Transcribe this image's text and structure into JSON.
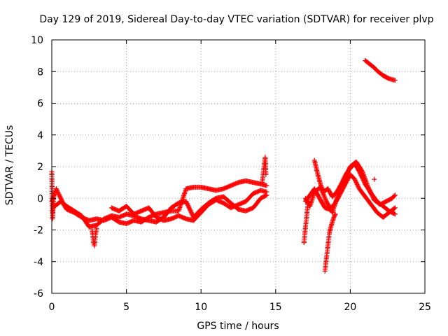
{
  "chart_data": {
    "type": "scatter",
    "title": "Day 129 of 2019, Sidereal Day-to-day VTEC variation (SDTVAR) for receiver plvp",
    "xlabel": "GPS time / hours",
    "ylabel": "SDTVAR / TECUs",
    "xlim": [
      0,
      25
    ],
    "ylim": [
      -6,
      10
    ],
    "xticks": [
      0,
      5,
      10,
      15,
      20,
      25
    ],
    "yticks": [
      -6,
      -4,
      -2,
      0,
      2,
      4,
      6,
      8,
      10
    ],
    "grid": true,
    "marker": "plus",
    "color": "#ff0000",
    "segments": [
      {
        "name": "main-track-a",
        "x": [
          0.0,
          0.3,
          0.5,
          0.8,
          1.0,
          1.5,
          2.0,
          2.5,
          3.0,
          3.5,
          4.0,
          4.5,
          5.0,
          5.5,
          6.0,
          6.5,
          7.0,
          7.5,
          8.0,
          8.5,
          9.0,
          9.5,
          10.0,
          10.5,
          11.0,
          11.5,
          12.0,
          12.5,
          13.0,
          13.5,
          14.0,
          14.4
        ],
        "y": [
          -0.2,
          0.6,
          0.2,
          -0.4,
          -0.7,
          -0.9,
          -1.2,
          -1.4,
          -1.3,
          -1.4,
          -1.2,
          -1.5,
          -1.6,
          -1.4,
          -1.5,
          -1.2,
          -1.0,
          -0.9,
          -0.8,
          -0.8,
          0.6,
          0.7,
          0.7,
          0.6,
          0.5,
          0.6,
          0.8,
          1.0,
          1.1,
          1.0,
          0.9,
          0.8
        ]
      },
      {
        "name": "main-track-b",
        "x": [
          0.2,
          0.6,
          1.0,
          1.5,
          2.0,
          2.5,
          3.0,
          3.5,
          4.0,
          4.5,
          5.0,
          5.5,
          6.0,
          6.5,
          7.0,
          7.5,
          8.0,
          8.5,
          9.0,
          9.5,
          10.0,
          10.5,
          11.0,
          11.5,
          12.0,
          12.5,
          13.0,
          13.5,
          14.0,
          14.4
        ],
        "y": [
          -0.5,
          -0.2,
          -0.5,
          -0.8,
          -1.1,
          -1.8,
          -1.7,
          -1.3,
          -1.1,
          -1.2,
          -1.0,
          -1.1,
          -1.3,
          -1.4,
          -1.5,
          -1.2,
          -0.6,
          -0.3,
          -0.2,
          -1.2,
          -0.7,
          -0.3,
          0.0,
          0.1,
          -0.3,
          -0.7,
          -0.8,
          -0.6,
          0.0,
          0.2
        ]
      },
      {
        "name": "main-track-c",
        "x": [
          4.0,
          4.5,
          5.0,
          5.5,
          6.0,
          6.5,
          7.0,
          7.5,
          8.0,
          8.5,
          9.0,
          9.5,
          10.0,
          10.5,
          11.0,
          11.5,
          12.0,
          12.5,
          13.0,
          13.5,
          14.0,
          14.4
        ],
        "y": [
          -0.6,
          -0.8,
          -0.5,
          -1.0,
          -0.8,
          -0.6,
          -1.2,
          -1.4,
          -1.3,
          -1.1,
          -1.3,
          -1.4,
          -0.9,
          -0.4,
          -0.1,
          -0.3,
          -0.6,
          -0.4,
          -0.2,
          0.3,
          0.5,
          0.4
        ]
      },
      {
        "name": "early-spike",
        "x": [
          0.0,
          0.05,
          0.1,
          0.15
        ],
        "y": [
          1.7,
          -1.3,
          -0.3,
          0.2
        ]
      },
      {
        "name": "dip-3h",
        "x": [
          2.7,
          2.75,
          2.8,
          2.85,
          2.9,
          2.95,
          3.0
        ],
        "y": [
          -2.0,
          -2.4,
          -2.8,
          -3.0,
          -2.6,
          -2.2,
          -1.9
        ]
      },
      {
        "name": "spike-14h",
        "x": [
          14.1,
          14.15,
          14.2,
          14.25,
          14.3,
          14.35
        ],
        "y": [
          1.0,
          1.4,
          1.8,
          2.2,
          2.6,
          1.5
        ]
      },
      {
        "name": "late-track-a",
        "x": [
          17.0,
          17.3,
          17.6,
          18.0,
          18.3,
          18.6,
          19.0,
          19.5,
          20.0,
          20.3,
          20.6,
          21.0,
          21.4,
          21.8,
          22.2,
          22.6,
          23.0
        ],
        "y": [
          -0.2,
          0.2,
          0.6,
          -0.1,
          -0.6,
          -0.7,
          -0.3,
          0.6,
          1.5,
          1.2,
          0.6,
          0.1,
          -0.4,
          -0.9,
          -1.2,
          -0.9,
          -0.6
        ]
      },
      {
        "name": "late-track-b",
        "x": [
          17.0,
          17.3,
          17.6,
          18.0,
          18.4,
          18.8,
          19.2,
          19.6,
          20.0,
          20.4,
          20.8,
          21.2,
          21.6,
          22.0,
          22.4,
          22.8,
          23.0
        ],
        "y": [
          0.0,
          -0.5,
          0.4,
          0.7,
          -0.2,
          -0.9,
          0.3,
          1.2,
          2.0,
          2.3,
          1.7,
          0.7,
          -0.1,
          -0.4,
          -0.2,
          0.0,
          0.2
        ]
      },
      {
        "name": "late-track-c",
        "x": [
          17.6,
          17.8,
          18.0,
          18.2,
          18.5,
          18.8,
          19.1,
          19.4,
          19.7,
          20.0,
          20.3,
          20.6,
          21.0,
          21.4,
          21.8,
          22.2,
          22.6,
          23.0
        ],
        "y": [
          2.4,
          1.6,
          0.9,
          0.4,
          0.6,
          0.1,
          0.4,
          0.9,
          1.5,
          1.9,
          2.2,
          1.7,
          0.9,
          0.3,
          -0.2,
          -0.5,
          -0.8,
          -1.0
        ]
      },
      {
        "name": "dip-17h",
        "x": [
          16.9,
          16.95,
          17.0,
          17.05,
          17.1,
          17.15,
          17.2
        ],
        "y": [
          -2.8,
          -2.3,
          -1.8,
          -1.4,
          -0.9,
          -0.5,
          -0.2
        ]
      },
      {
        "name": "dip-18h",
        "x": [
          18.3,
          18.35,
          18.4,
          18.45,
          18.5,
          18.55,
          18.6,
          18.7,
          18.8,
          18.9,
          19.0
        ],
        "y": [
          -4.6,
          -4.2,
          -3.8,
          -3.4,
          -3.0,
          -2.6,
          -2.2,
          -1.8,
          -1.5,
          -1.2,
          -1.0
        ]
      },
      {
        "name": "isolated-21-5h",
        "x": [
          21.6
        ],
        "y": [
          1.2
        ]
      },
      {
        "name": "upper-track",
        "x": [
          21.0,
          21.2,
          21.4,
          21.6,
          21.8,
          22.0,
          22.2,
          22.4,
          22.6,
          22.8,
          23.0
        ],
        "y": [
          8.7,
          8.55,
          8.4,
          8.25,
          8.05,
          7.9,
          7.75,
          7.65,
          7.55,
          7.5,
          7.45
        ]
      }
    ]
  }
}
